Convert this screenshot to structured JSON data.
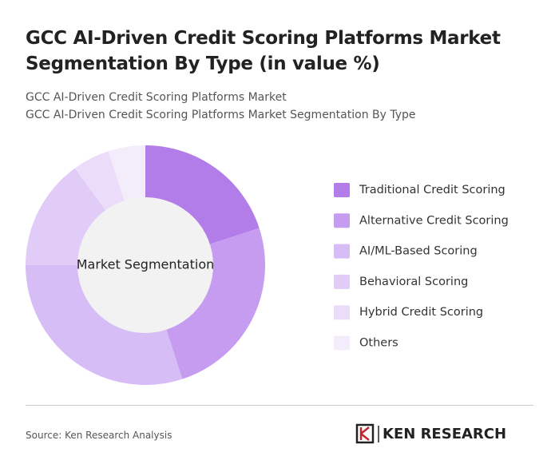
{
  "chart_data": {
    "type": "donut",
    "title": "GCC AI-Driven Credit Scoring Platforms Market Segmentation By Type (in value %)",
    "subtitle_lines": [
      "GCC AI-Driven Credit Scoring Platforms Market",
      "GCC AI-Driven Credit Scoring Platforms Market Segmentation By Type"
    ],
    "center_label": "Market Segmentation",
    "categories": [
      "Traditional Credit Scoring",
      "Alternative Credit Scoring",
      "AI/ML-Based Scoring",
      "Behavioral Scoring",
      "Hybrid Credit Scoring",
      "Others"
    ],
    "values": [
      20,
      25,
      30,
      15,
      5,
      5
    ],
    "colors": [
      "#b27de8",
      "#c59cf0",
      "#d7bdf6",
      "#e1ccf7",
      "#ebdcf9",
      "#f3ecfb"
    ],
    "legend": "right",
    "source": "Source: Ken Research Analysis",
    "logo": "KEN RESEARCH"
  }
}
